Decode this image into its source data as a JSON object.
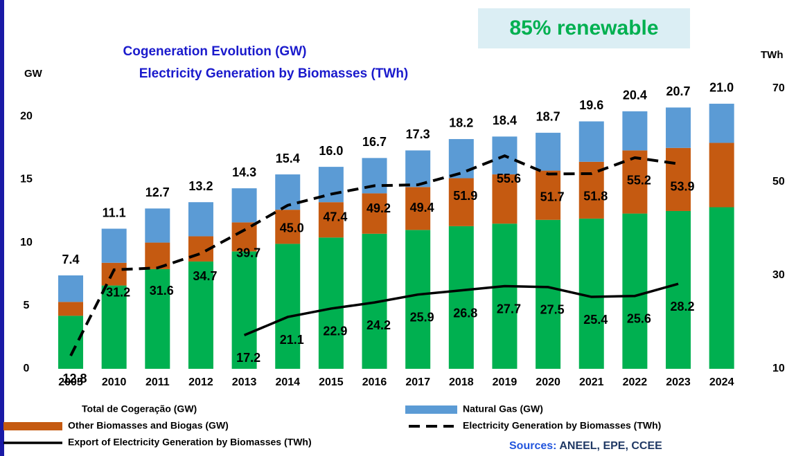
{
  "chart_data": {
    "type": "bar",
    "stacked": true,
    "title": [
      "Cogeneration Evolution (GW)",
      "Electricity Generation by Biomasses (TWh)"
    ],
    "highlight": "85% renewable",
    "ylabel": "GW",
    "y2label": "TWh",
    "sources_label": "Sources:",
    "sources": "ANEEL, EPE, CCEE",
    "categories": [
      "2005",
      "2010",
      "2011",
      "2012",
      "2013",
      "2014",
      "2015",
      "2016",
      "2017",
      "2018",
      "2019",
      "2020",
      "2021",
      "2022",
      "2023",
      "2024"
    ],
    "series": [
      {
        "name": "Total de Cogeração (GW)",
        "color": "#00b050",
        "values": [
          4.2,
          6.6,
          7.9,
          8.5,
          9.3,
          9.9,
          10.4,
          10.7,
          11.0,
          11.3,
          11.5,
          11.8,
          11.9,
          12.3,
          12.5,
          12.8
        ]
      },
      {
        "name": "Other Biomasses and Biogas (GW)",
        "color": "#c55a11",
        "values": [
          1.1,
          1.8,
          2.1,
          2.0,
          2.3,
          2.7,
          2.8,
          3.2,
          3.4,
          3.8,
          3.9,
          3.9,
          4.5,
          5.0,
          5.0,
          5.1
        ]
      },
      {
        "name": "Natural Gas (GW)",
        "color": "#5b9bd5",
        "values": [
          2.1,
          2.7,
          2.7,
          2.7,
          2.7,
          2.8,
          2.8,
          2.8,
          2.9,
          3.1,
          3.0,
          3.0,
          3.2,
          3.1,
          3.2,
          3.1
        ]
      },
      {
        "name": "Electricity Generation by Biomasses (TWh)",
        "color": "#000000",
        "type": "line",
        "style": "dashed",
        "axis": "y2",
        "values": [
          12.8,
          31.2,
          31.6,
          34.7,
          39.7,
          45.0,
          47.4,
          49.2,
          49.4,
          51.9,
          55.6,
          51.7,
          51.8,
          55.2,
          53.9,
          null
        ],
        "value_labels": [
          "12.8",
          "31.2",
          "31.6",
          "34.7",
          "39.7",
          "45.0",
          "47.4",
          "49.2",
          "49.4",
          "51.9",
          "55.6",
          "51.7",
          "51.8",
          "55.2",
          "53.9",
          null
        ]
      },
      {
        "name": "Export of Electricity Generation by Biomasses (TWh)",
        "color": "#000000",
        "type": "line",
        "style": "solid",
        "axis": "y2",
        "values": [
          null,
          null,
          null,
          null,
          17.2,
          21.1,
          22.9,
          24.2,
          25.9,
          26.8,
          27.7,
          27.5,
          25.4,
          25.6,
          28.2,
          null
        ]
      }
    ],
    "totals": [
      7.4,
      11.1,
      12.7,
      13.2,
      14.3,
      15.4,
      16.0,
      16.7,
      17.3,
      18.2,
      18.4,
      18.7,
      19.6,
      20.4,
      20.7,
      21.0
    ],
    "total_labels": [
      "7.4",
      "11.1",
      "12.7",
      "13.2",
      "14.3",
      "15.4",
      "16.0",
      "16.7",
      "17.3",
      "18.2",
      "18.4",
      "18.7",
      "19.6",
      "20.4",
      "20.7",
      "21.0"
    ],
    "ylim": [
      0,
      22.2
    ],
    "yticks": [
      0,
      5,
      10,
      15,
      20
    ],
    "y2lim": [
      10,
      70
    ],
    "y2ticks": [
      10,
      30,
      50,
      70
    ],
    "grid": false
  }
}
